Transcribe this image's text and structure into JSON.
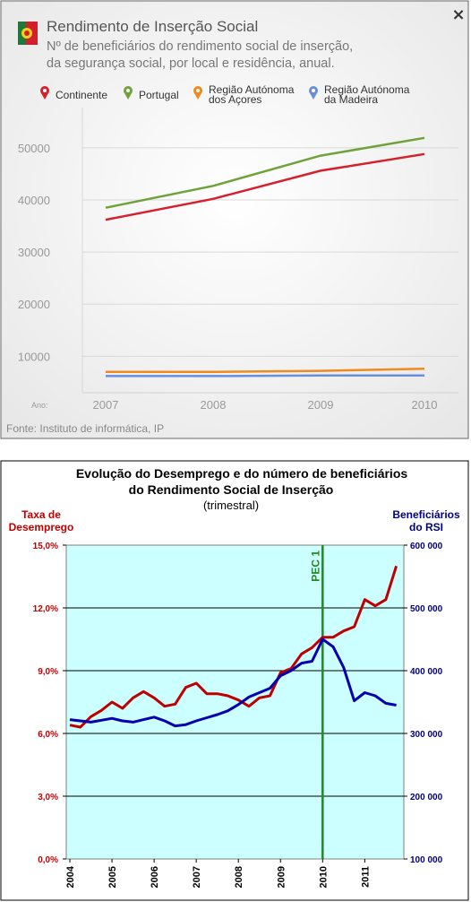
{
  "chart_data": [
    {
      "type": "line",
      "title": "Rendimento de Inserção Social",
      "subtitle_lines": [
        "Nº de beneficiários do rendimento social de inserção,",
        "da segurança social, por local e residência, anual."
      ],
      "x_axis_label": "Ano:",
      "categories": [
        "2007",
        "2008",
        "2009",
        "2010"
      ],
      "yticks": [
        10000,
        20000,
        30000,
        40000,
        50000
      ],
      "ylim": [
        3000,
        56000
      ],
      "grid": "horizontal",
      "legend_position": "top",
      "series": [
        {
          "name": "Continente",
          "color": "#d6202c",
          "values": [
            36200,
            40200,
            45600,
            48800
          ]
        },
        {
          "name": "Portugal",
          "color": "#6fa23a",
          "values": [
            38500,
            42700,
            48500,
            51900
          ]
        },
        {
          "name": "Região Autónoma dos Açores",
          "name_lines": [
            "Região Autónoma",
            "dos Açores"
          ],
          "color": "#f08a1e",
          "values": [
            7000,
            7000,
            7200,
            7600
          ]
        },
        {
          "name": "Região Autónoma da Madeira",
          "name_lines": [
            "Região Autónoma",
            "da Madeira"
          ],
          "color": "#6a8fd8",
          "values": [
            6200,
            6200,
            6300,
            6300
          ]
        }
      ],
      "source": "Fonte: Instituto de informática, IP",
      "close_label": "×"
    },
    {
      "type": "line",
      "title_lines": [
        "Evolução do Desemprego e do número de beneficiários",
        "do Rendimento Social de Inserção"
      ],
      "subtitle": "(trimestral)",
      "left_axis_label_lines": [
        "Taxa de",
        "Desemprego"
      ],
      "right_axis_label_lines": [
        "Beneficiários",
        "do RSI"
      ],
      "left_yticks": [
        "0,0%",
        "3,0%",
        "6,0%",
        "9,0%",
        "12,0%",
        "15,0%"
      ],
      "left_ylim": [
        0,
        15
      ],
      "right_yticks": [
        "100 000",
        "200 000",
        "300 000",
        "400 000",
        "500 000",
        "600 000"
      ],
      "right_ylim": [
        100000,
        600000
      ],
      "x_labels": [
        "2004",
        "2005",
        "2006",
        "2007",
        "2008",
        "2009",
        "2010",
        "2011"
      ],
      "x_range": [
        2004,
        2011.8
      ],
      "background": "#ccffff",
      "grid": "horizontal",
      "annotation": {
        "label": "PEC 1",
        "x": 2010,
        "color": "#1e8c1e"
      },
      "series": [
        {
          "name": "Taxa de Desemprego",
          "axis": "left",
          "color": "#c00000",
          "x": [
            2004,
            2004.25,
            2004.5,
            2004.75,
            2005,
            2005.25,
            2005.5,
            2005.75,
            2006,
            2006.25,
            2006.5,
            2006.75,
            2007,
            2007.25,
            2007.5,
            2007.75,
            2008,
            2008.25,
            2008.5,
            2008.75,
            2009,
            2009.25,
            2009.5,
            2009.75,
            2010,
            2010.25,
            2010.5,
            2010.75,
            2011,
            2011.25,
            2011.5,
            2011.75
          ],
          "values": [
            6.4,
            6.3,
            6.8,
            7.1,
            7.5,
            7.2,
            7.7,
            8.0,
            7.7,
            7.3,
            7.4,
            8.2,
            8.4,
            7.9,
            7.9,
            7.8,
            7.6,
            7.3,
            7.7,
            7.8,
            8.9,
            9.1,
            9.8,
            10.1,
            10.6,
            10.6,
            10.9,
            11.1,
            12.4,
            12.1,
            12.4,
            14.0
          ]
        },
        {
          "name": "Beneficiários do RSI",
          "axis": "right",
          "color": "#0000b0",
          "x": [
            2004,
            2004.25,
            2004.5,
            2004.75,
            2005,
            2005.25,
            2005.5,
            2005.75,
            2006,
            2006.25,
            2006.5,
            2006.75,
            2007,
            2007.25,
            2007.5,
            2007.75,
            2008,
            2008.25,
            2008.5,
            2008.75,
            2009,
            2009.25,
            2009.5,
            2009.75,
            2010,
            2010.25,
            2010.5,
            2010.75,
            2011,
            2011.25,
            2011.5,
            2011.75
          ],
          "values": [
            322000,
            320000,
            318000,
            321000,
            324000,
            320000,
            318000,
            322000,
            326000,
            320000,
            312000,
            314000,
            320000,
            325000,
            330000,
            336000,
            346000,
            358000,
            365000,
            372000,
            392000,
            400000,
            412000,
            415000,
            450000,
            438000,
            405000,
            352000,
            365000,
            360000,
            348000,
            345000
          ]
        }
      ]
    }
  ]
}
